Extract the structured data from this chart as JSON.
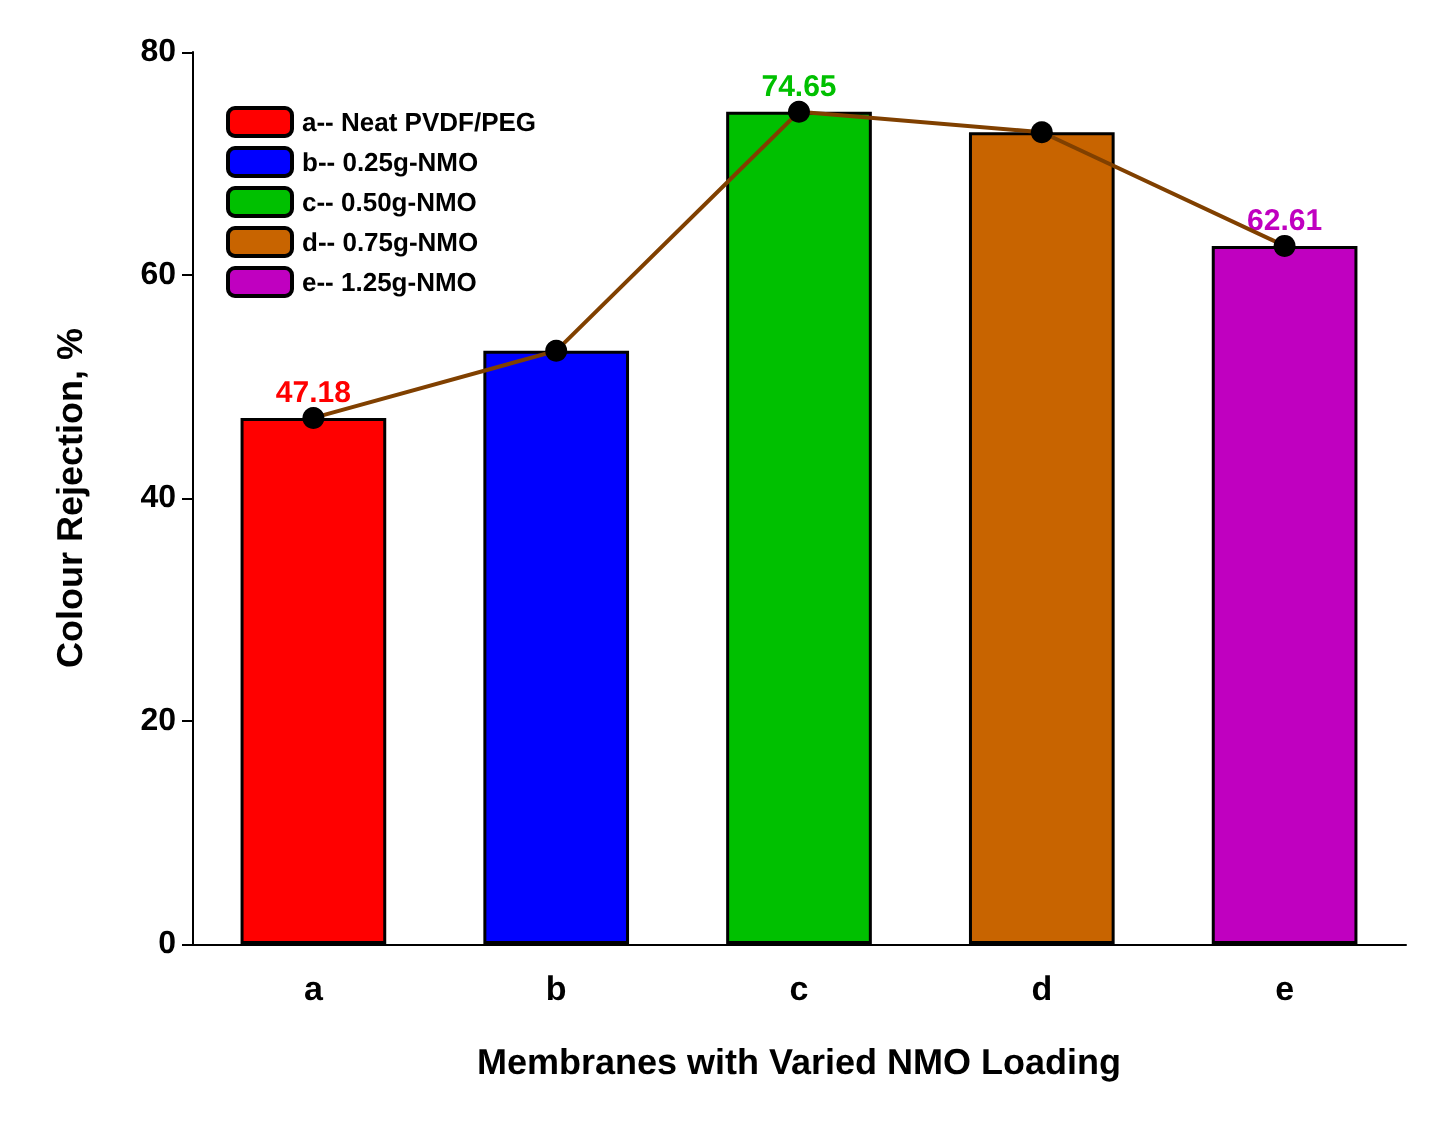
{
  "chart_data": {
    "type": "bar",
    "xlabel": "Membranes with Varied NMO Loading",
    "ylabel": "Colour Rejection, %",
    "categories": [
      "a",
      "b",
      "c",
      "d",
      "e"
    ],
    "series": [
      {
        "name": "a-- Neat PVDF/PEG",
        "color": "#ff0000",
        "values": [
          47.18,
          null,
          null,
          null,
          null
        ],
        "value_labels": [
          "47.18",
          null,
          null,
          null,
          null
        ]
      },
      {
        "name": "b-- 0.25g-NMO",
        "color": "#0000ff",
        "values": [
          null,
          53.2,
          null,
          null,
          null
        ]
      },
      {
        "name": "c-- 0.50g-NMO",
        "color": "#00c000",
        "values": [
          null,
          null,
          74.65,
          null,
          null
        ],
        "value_labels": [
          null,
          null,
          "74.65",
          null,
          null
        ]
      },
      {
        "name": "d-- 0.75g-NMO",
        "color": "#c86400",
        "values": [
          null,
          null,
          null,
          72.8,
          null
        ]
      },
      {
        "name": "e-- 1.25g-NMO",
        "color": "#c000c0",
        "values": [
          null,
          null,
          null,
          null,
          62.61
        ],
        "value_labels": [
          null,
          null,
          null,
          null,
          "62.61"
        ]
      },
      {
        "type": "line",
        "color": "#804000",
        "values": [
          47.18,
          53.2,
          74.65,
          72.8,
          62.61
        ],
        "marker": "circle"
      }
    ],
    "ylim": [
      0,
      80
    ],
    "yticks": [
      0,
      20,
      40,
      60,
      80
    ],
    "grid": false,
    "legend": "top left"
  }
}
